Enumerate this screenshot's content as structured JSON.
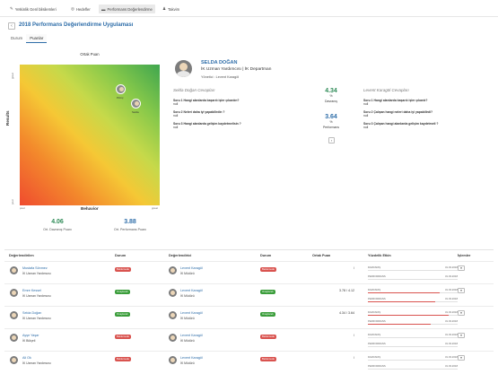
{
  "nav": {
    "tabs": [
      {
        "label": "Yetkinlik Genl bilsilemleri",
        "icon": "edit-icon"
      },
      {
        "label": "Hedefler",
        "icon": "target-icon"
      },
      {
        "label": "Performans Değerlendirme",
        "icon": "chart-icon"
      },
      {
        "label": "Takvim",
        "icon": "people-icon"
      }
    ],
    "active": 2
  },
  "page": {
    "title": "2018 Performans Değerlendirme Uygulaması",
    "subtabs": [
      "Durum",
      "Puanlar"
    ],
    "active_subtab": 1
  },
  "matrix": {
    "title": "Ortak Puan",
    "ylabel": "Results",
    "xlabel": "Behavior",
    "y_ticks": [
      "great",
      "poor"
    ],
    "x_ticks": [
      "poor",
      "great"
    ],
    "points": [
      {
        "label": "Pirinç"
      },
      {
        "label": "Selda"
      }
    ]
  },
  "scores": {
    "davranis_value": "4.06",
    "davranis_label": "Ort. Davranış Puanı",
    "performans_value": "3.88",
    "performans_label": "Ort. Performans Puanı"
  },
  "profile": {
    "name": "SELDA DOĞAN",
    "title": "İK Uzman Yardımcısı | İK Departman",
    "manager": "Yönetici : Levent Karagöl"
  },
  "answers": {
    "left_head": "Selda Doğan Cevapları",
    "right_head": "Levent Karagöl Cevapları",
    "left": [
      {
        "q": "Soru 1 Hangi alanlarda başarılı işler çıkardın?",
        "a": "null"
      },
      {
        "q": "Soru 2 Neleri daha iyi yapabilirdin ?",
        "a": "null"
      },
      {
        "q": "Soru 3 Hangi alanlarda gelişim kaydetmelisin ?",
        "a": "null"
      }
    ],
    "right": [
      {
        "q": "Soru 1 Hangi alanlarda başarılı işler çıkardı?",
        "a": "null"
      },
      {
        "q": "Soru 2 Çalışan hangi neleri daha iyi yapabilirdi?",
        "a": "null"
      },
      {
        "q": "Soru 3 Çalışan hangi alanlarda gelişim kaydetmeli ?",
        "a": "null"
      }
    ],
    "mid": [
      {
        "value": "4.34",
        "pct": "%",
        "label": "Davranış"
      },
      {
        "value": "3.64",
        "pct": "%",
        "label": "Performans"
      }
    ],
    "mid_button": "›"
  },
  "table": {
    "headers": [
      "Değerlendirilen",
      "Durum",
      "Değerlendirici",
      "Durum",
      "Ortak Puan",
      "Yüzdelik Etkin",
      "İşlemler"
    ],
    "rows": [
      {
        "name": "Mustafa Sönmez",
        "title": "İK Uzman Yardımcısı",
        "status": "Beklemede",
        "status_color": "red",
        "rater": "Levent Karagöl",
        "rater_title": "İK Müdürü",
        "rater_status": "Beklemede",
        "rater_status_color": "red",
        "score": "/",
        "history": [
          {
            "label": "DAVRANIŞ",
            "date": "31.03.2018",
            "fill": 0
          },
          {
            "label": "PERFORMANS",
            "date": "31.03.2018",
            "fill": 0
          }
        ],
        "action": "▾"
      },
      {
        "name": "Emre Kessel",
        "title": "İK Uzman Yardımcısı",
        "status": "Onaylandı",
        "status_color": "green",
        "rater": "Levent Karagöl",
        "rater_title": "İK Müdürü",
        "rater_status": "Onaylandı",
        "rater_status_color": "green",
        "score": "3.78 / 4.12",
        "history": [
          {
            "label": "DAVRANIŞ",
            "date": "31.03.2018",
            "fill": 0.8
          },
          {
            "label": "PERFORMANS",
            "date": "31.03.2018",
            "fill": 0.75
          }
        ],
        "action": "▾"
      },
      {
        "name": "Selda Doğan",
        "title": "İK Uzman Yardımcısı",
        "status": "Onaylandı",
        "status_color": "green",
        "rater": "Levent Karagöl",
        "rater_title": "İK Müdürü",
        "rater_status": "Onaylandı",
        "rater_status_color": "green",
        "score": "4.34 / 3.64",
        "history": [
          {
            "label": "DAVRANIŞ",
            "date": "31.03.2018",
            "fill": 0.9
          },
          {
            "label": "PERFORMANS",
            "date": "31.03.2018",
            "fill": 0.7
          }
        ],
        "action": "▾"
      },
      {
        "name": "Ayşe Yaşar",
        "title": "İK Bütçeli",
        "status": "Beklemede",
        "status_color": "red",
        "rater": "Levent Karagöl",
        "rater_title": "İK Müdürü",
        "rater_status": "Beklemede",
        "rater_status_color": "red",
        "score": "/",
        "history": [
          {
            "label": "DAVRANIŞ",
            "date": "31.03.2018",
            "fill": 0
          },
          {
            "label": "PERFORMANS",
            "date": "31.03.2018",
            "fill": 0
          }
        ],
        "action": "▾"
      },
      {
        "name": "Ali Ok",
        "title": "İK Uzman Yardımcısı",
        "status": "Beklemede",
        "status_color": "red",
        "rater": "Levent Karagöl",
        "rater_title": "İK Müdürü",
        "rater_status": "Beklemede",
        "rater_status_color": "red",
        "score": "/",
        "history": [
          {
            "label": "DAVRANIŞ",
            "date": "31.03.2018",
            "fill": 0
          },
          {
            "label": "PERFORMANS",
            "date": "31.03.2018",
            "fill": 0
          }
        ],
        "action": "▾"
      }
    ]
  },
  "colors": {
    "accent": "#2f6ea9",
    "danger": "#d9534f",
    "success": "#3a9d3a"
  }
}
